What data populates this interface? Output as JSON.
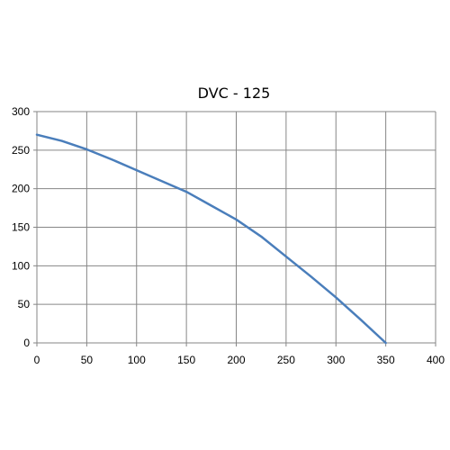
{
  "chart_data": {
    "type": "line",
    "title": "DVC - 125",
    "xlabel": "",
    "ylabel": "",
    "xlim": [
      0,
      400
    ],
    "ylim": [
      0,
      300
    ],
    "xticks": [
      0,
      50,
      100,
      150,
      200,
      250,
      300,
      350,
      400
    ],
    "yticks": [
      0,
      50,
      100,
      150,
      200,
      250,
      300
    ],
    "grid": true,
    "series": [
      {
        "color": "#4a7ebb",
        "x": [
          0,
          25,
          50,
          75,
          100,
          125,
          150,
          175,
          200,
          225,
          250,
          275,
          300,
          325,
          350
        ],
        "y": [
          270,
          262,
          251,
          238,
          224,
          210,
          196,
          178,
          160,
          138,
          112,
          86,
          59,
          30,
          0
        ]
      }
    ]
  }
}
